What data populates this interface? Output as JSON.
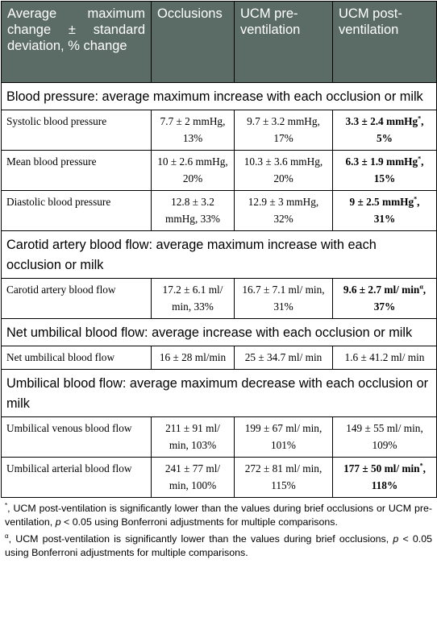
{
  "table": {
    "headers": [
      "Average maximum change ± standard deviation, % change",
      "Occlusions",
      "UCM pre-ventilation",
      "UCM post-ventilation"
    ],
    "sections": [
      {
        "title": "Blood pressure: average maximum increase with each occlusion or milk",
        "rows": [
          {
            "label": "Systolic blood pressure",
            "occlusions": "7.7 ± 2 mmHg, 13%",
            "pre": "9.7 ± 3.2 mmHg, 17%",
            "post": "3.3 ± 2.4 mmHg*, 5%",
            "post_bold": true
          },
          {
            "label": "Mean blood pressure",
            "occlusions": "10 ± 2.6 mmHg, 20%",
            "pre": "10.3 ± 3.6 mmHg, 20%",
            "post": "6.3 ± 1.9 mmHg*, 15%",
            "post_bold": true
          },
          {
            "label": "Diastolic blood pressure",
            "occlusions": "12.8 ± 3.2 mmHg, 33%",
            "pre": "12.9 ± 3 mmHg, 32%",
            "post": "9 ± 2.5 mmHg*, 31%",
            "post_bold": true
          }
        ]
      },
      {
        "title": "Carotid artery blood flow: average maximum increase with each occlusion or milk",
        "rows": [
          {
            "label": "Carotid artery blood flow",
            "occlusions": "17.2 ± 6.1 ml/ min, 33%",
            "pre": "16.7 ± 7.1 ml/ min, 31%",
            "post": "9.6 ± 2.7 ml/ minα, 37%",
            "post_bold": true
          }
        ]
      },
      {
        "title": "Net umbilical blood flow: average increase with each occlusion or milk",
        "rows": [
          {
            "label": "Net umbilical blood flow",
            "occlusions": "16 ± 28 ml/min",
            "pre": "25 ± 34.7 ml/ min",
            "post": "1.6 ± 41.2 ml/ min",
            "post_bold": false
          }
        ]
      },
      {
        "title": "Umbilical blood flow: average maximum decrease with each occlusion or milk",
        "rows": [
          {
            "label": "Umbilical venous blood flow",
            "occlusions": "211 ± 91 ml/ min, 103%",
            "pre": "199 ± 67 ml/ min, 101%",
            "post": "149 ± 55 ml/ min, 109%",
            "post_bold": false
          },
          {
            "label": "Umbilical arterial blood flow",
            "occlusions": "241 ± 77 ml/ min, 100%",
            "pre": "272 ± 81 ml/ min, 115%",
            "post": "177 ± 50 ml/ min*, 118%",
            "post_bold": true
          }
        ]
      }
    ]
  },
  "footnotes": {
    "f1_mark": "*",
    "f1_a": ", UCM post-ventilation is significantly lower than the values during brief occlusions or UCM pre-ventilation, ",
    "f1_p": "p",
    "f1_b": " < 0.05 using Bonferroni adjustments for multiple comparisons.",
    "f2_mark": "α",
    "f2_a": ", UCM post-ventilation is significantly lower than the values during brief occlusions, ",
    "f2_p": "p",
    "f2_b": " < 0.05 using Bonferroni adjustments for multiple comparisons."
  }
}
